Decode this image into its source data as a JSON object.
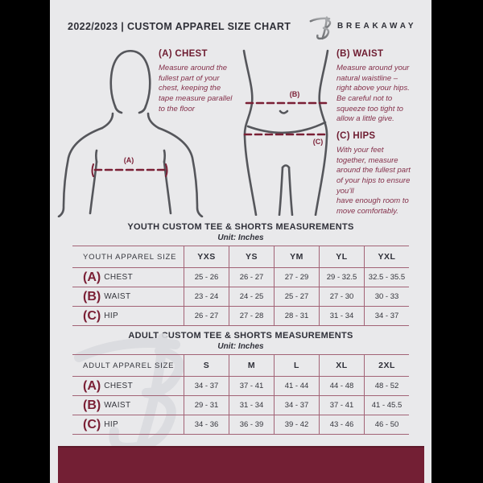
{
  "header": {
    "title": "2022/2023  |  CUSTOM APPAREL SIZE CHART",
    "brand": "BREAKAWAY"
  },
  "colors": {
    "canvas": "#000000",
    "page_bg": "#e9e9eb",
    "maroon": "#731f34",
    "table_rule": "#a26376",
    "charcoal": "#2f3039"
  },
  "figure_labels": {
    "chest": "(A)",
    "waist": "(B)",
    "hips": "(C)"
  },
  "instructions": [
    {
      "heading": "(A) CHEST",
      "body": "Measure around the\nfullest part of your\nchest, keeping the\ntape measure parallel\nto the floor"
    },
    {
      "heading": "(B) WAIST",
      "body": "Measure around your\nnatural waistline –\nright above your hips.\nBe careful not to\nsqueeze too tight to\nallow a little give."
    },
    {
      "heading": "(C) HIPS",
      "body": "With your feet\ntogether, measure\naround the fullest part\nof your hips to ensure\nyou’ll\nhave enough room to\nmove comfortably."
    }
  ],
  "youth_section": {
    "title": "YOUTH CUSTOM TEE & SHORTS MEASUREMENTS",
    "unit": "Unit: Inches"
  },
  "adult_section": {
    "title": "ADULT CUSTOM TEE & SHORTS MEASUREMENTS",
    "unit": "Unit: Inches"
  },
  "youth_table": {
    "label_header": "YOUTH APPAREL SIZE",
    "size_headers": [
      "YXS",
      "YS",
      "YM",
      "YL",
      "YXL"
    ],
    "rows": [
      {
        "prefix": "(A)",
        "label": "CHEST",
        "values": [
          "25 - 26",
          "26 - 27",
          "27 - 29",
          "29 - 32.5",
          "32.5 - 35.5"
        ]
      },
      {
        "prefix": "(B)",
        "label": "WAIST",
        "values": [
          "23 - 24",
          "24 - 25",
          "25 - 27",
          "27 - 30",
          "30 - 33"
        ]
      },
      {
        "prefix": "(C)",
        "label": "HIP",
        "values": [
          "26 - 27",
          "27 - 28",
          "28 - 31",
          "31 - 34",
          "34 - 37"
        ]
      }
    ]
  },
  "adult_table": {
    "label_header": "ADULT APPAREL SIZE",
    "size_headers": [
      "S",
      "M",
      "L",
      "XL",
      "2XL"
    ],
    "rows": [
      {
        "prefix": "(A)",
        "label": "CHEST",
        "values": [
          "34 - 37",
          "37 - 41",
          "41 - 44",
          "44 - 48",
          "48 - 52"
        ]
      },
      {
        "prefix": "(B)",
        "label": "WAIST",
        "values": [
          "29 - 31",
          "31 - 34",
          "34 - 37",
          "37 - 41",
          "41 - 45.5"
        ]
      },
      {
        "prefix": "(C)",
        "label": "HIP",
        "values": [
          "34 - 36",
          "36 - 39",
          "39 - 42",
          "43 - 46",
          "46 - 50"
        ]
      }
    ]
  }
}
